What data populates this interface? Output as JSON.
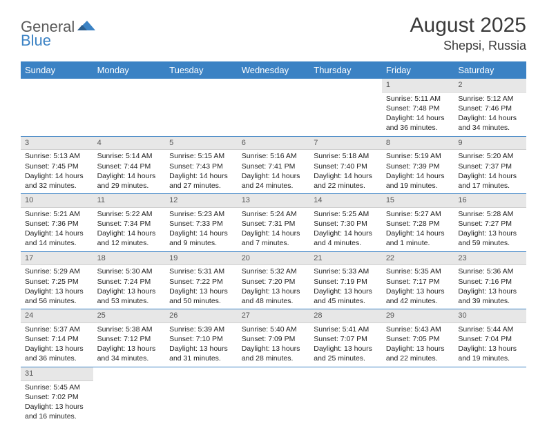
{
  "logo": {
    "part1": "General",
    "part2": "Blue"
  },
  "title": "August 2025",
  "location": "Shepsi, Russia",
  "colors": {
    "header_bg": "#3b82c4",
    "header_fg": "#ffffff",
    "daynum_bg": "#e7e7e7",
    "row_border": "#3b82c4",
    "text": "#222222",
    "logo_gray": "#5a5a5a",
    "logo_blue": "#3b82c4"
  },
  "weekdays": [
    "Sunday",
    "Monday",
    "Tuesday",
    "Wednesday",
    "Thursday",
    "Friday",
    "Saturday"
  ],
  "weeks": [
    [
      null,
      null,
      null,
      null,
      null,
      {
        "n": "1",
        "sr": "5:11 AM",
        "ss": "7:48 PM",
        "dl": "14 hours and 36 minutes."
      },
      {
        "n": "2",
        "sr": "5:12 AM",
        "ss": "7:46 PM",
        "dl": "14 hours and 34 minutes."
      }
    ],
    [
      {
        "n": "3",
        "sr": "5:13 AM",
        "ss": "7:45 PM",
        "dl": "14 hours and 32 minutes."
      },
      {
        "n": "4",
        "sr": "5:14 AM",
        "ss": "7:44 PM",
        "dl": "14 hours and 29 minutes."
      },
      {
        "n": "5",
        "sr": "5:15 AM",
        "ss": "7:43 PM",
        "dl": "14 hours and 27 minutes."
      },
      {
        "n": "6",
        "sr": "5:16 AM",
        "ss": "7:41 PM",
        "dl": "14 hours and 24 minutes."
      },
      {
        "n": "7",
        "sr": "5:18 AM",
        "ss": "7:40 PM",
        "dl": "14 hours and 22 minutes."
      },
      {
        "n": "8",
        "sr": "5:19 AM",
        "ss": "7:39 PM",
        "dl": "14 hours and 19 minutes."
      },
      {
        "n": "9",
        "sr": "5:20 AM",
        "ss": "7:37 PM",
        "dl": "14 hours and 17 minutes."
      }
    ],
    [
      {
        "n": "10",
        "sr": "5:21 AM",
        "ss": "7:36 PM",
        "dl": "14 hours and 14 minutes."
      },
      {
        "n": "11",
        "sr": "5:22 AM",
        "ss": "7:34 PM",
        "dl": "14 hours and 12 minutes."
      },
      {
        "n": "12",
        "sr": "5:23 AM",
        "ss": "7:33 PM",
        "dl": "14 hours and 9 minutes."
      },
      {
        "n": "13",
        "sr": "5:24 AM",
        "ss": "7:31 PM",
        "dl": "14 hours and 7 minutes."
      },
      {
        "n": "14",
        "sr": "5:25 AM",
        "ss": "7:30 PM",
        "dl": "14 hours and 4 minutes."
      },
      {
        "n": "15",
        "sr": "5:27 AM",
        "ss": "7:28 PM",
        "dl": "14 hours and 1 minute."
      },
      {
        "n": "16",
        "sr": "5:28 AM",
        "ss": "7:27 PM",
        "dl": "13 hours and 59 minutes."
      }
    ],
    [
      {
        "n": "17",
        "sr": "5:29 AM",
        "ss": "7:25 PM",
        "dl": "13 hours and 56 minutes."
      },
      {
        "n": "18",
        "sr": "5:30 AM",
        "ss": "7:24 PM",
        "dl": "13 hours and 53 minutes."
      },
      {
        "n": "19",
        "sr": "5:31 AM",
        "ss": "7:22 PM",
        "dl": "13 hours and 50 minutes."
      },
      {
        "n": "20",
        "sr": "5:32 AM",
        "ss": "7:20 PM",
        "dl": "13 hours and 48 minutes."
      },
      {
        "n": "21",
        "sr": "5:33 AM",
        "ss": "7:19 PM",
        "dl": "13 hours and 45 minutes."
      },
      {
        "n": "22",
        "sr": "5:35 AM",
        "ss": "7:17 PM",
        "dl": "13 hours and 42 minutes."
      },
      {
        "n": "23",
        "sr": "5:36 AM",
        "ss": "7:16 PM",
        "dl": "13 hours and 39 minutes."
      }
    ],
    [
      {
        "n": "24",
        "sr": "5:37 AM",
        "ss": "7:14 PM",
        "dl": "13 hours and 36 minutes."
      },
      {
        "n": "25",
        "sr": "5:38 AM",
        "ss": "7:12 PM",
        "dl": "13 hours and 34 minutes."
      },
      {
        "n": "26",
        "sr": "5:39 AM",
        "ss": "7:10 PM",
        "dl": "13 hours and 31 minutes."
      },
      {
        "n": "27",
        "sr": "5:40 AM",
        "ss": "7:09 PM",
        "dl": "13 hours and 28 minutes."
      },
      {
        "n": "28",
        "sr": "5:41 AM",
        "ss": "7:07 PM",
        "dl": "13 hours and 25 minutes."
      },
      {
        "n": "29",
        "sr": "5:43 AM",
        "ss": "7:05 PM",
        "dl": "13 hours and 22 minutes."
      },
      {
        "n": "30",
        "sr": "5:44 AM",
        "ss": "7:04 PM",
        "dl": "13 hours and 19 minutes."
      }
    ],
    [
      {
        "n": "31",
        "sr": "5:45 AM",
        "ss": "7:02 PM",
        "dl": "13 hours and 16 minutes."
      },
      null,
      null,
      null,
      null,
      null,
      null
    ]
  ],
  "labels": {
    "sunrise": "Sunrise: ",
    "sunset": "Sunset: ",
    "daylight": "Daylight: "
  }
}
